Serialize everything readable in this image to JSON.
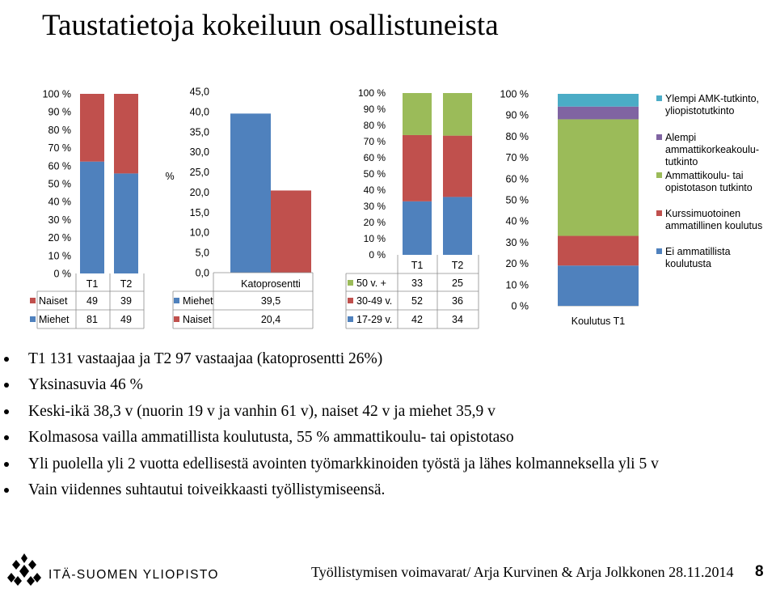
{
  "title": "Taustatietoja kokeiluun osallistuneista",
  "colors": {
    "blue": "#4F81BD",
    "red": "#C0504D",
    "green": "#9BBB59",
    "purple": "#8064A2",
    "cyan": "#4BACC6"
  },
  "chart_data": [
    {
      "type": "bar",
      "stacked": "percent",
      "categories": [
        "T1",
        "T2"
      ],
      "series": [
        {
          "name": "Miehet",
          "values": [
            81,
            49
          ],
          "color": "#4F81BD"
        },
        {
          "name": "Naiset",
          "values": [
            49,
            39
          ],
          "color": "#C0504D"
        }
      ],
      "yticks": [
        "0 %",
        "10 %",
        "20 %",
        "30 %",
        "40 %",
        "50 %",
        "60 %",
        "70 %",
        "80 %",
        "90 %",
        "100 %"
      ],
      "ylim": [
        0,
        100
      ],
      "data_table": true
    },
    {
      "type": "bar",
      "categories": [
        "Katoprosentti"
      ],
      "series": [
        {
          "name": "Miehet",
          "values": [
            "39,5"
          ],
          "value": 39.5,
          "color": "#4F81BD"
        },
        {
          "name": "Naiset",
          "values": [
            "20,4"
          ],
          "value": 20.4,
          "color": "#C0504D"
        }
      ],
      "ylabel": "%",
      "yticks": [
        "0,0",
        "5,0",
        "10,0",
        "15,0",
        "20,0",
        "25,0",
        "30,0",
        "35,0",
        "40,0",
        "45,0"
      ],
      "ylim": [
        0,
        45
      ],
      "data_table": true
    },
    {
      "type": "bar",
      "stacked": "percent",
      "categories": [
        "T1",
        "T2"
      ],
      "series": [
        {
          "name": "17-29 v.",
          "values": [
            42,
            34
          ],
          "color": "#4F81BD"
        },
        {
          "name": "30-49 v.",
          "values": [
            52,
            36
          ],
          "color": "#C0504D"
        },
        {
          "name": "50 v. +",
          "values": [
            33,
            25
          ],
          "color": "#9BBB59"
        }
      ],
      "yticks": [
        "0 %",
        "10 %",
        "20 %",
        "30 %",
        "40 %",
        "50 %",
        "60 %",
        "70 %",
        "80 %",
        "90 %",
        "100 %"
      ],
      "ylim": [
        0,
        100
      ],
      "data_table": true
    },
    {
      "type": "bar",
      "stacked": "percent",
      "categories": [
        "Koulutus T1"
      ],
      "series": [
        {
          "name": "Ei ammatillista koulutusta",
          "values": [
            19
          ],
          "color": "#4F81BD"
        },
        {
          "name": "Kurssimuotoinen ammatillinen koulutus",
          "values": [
            14
          ],
          "color": "#C0504D"
        },
        {
          "name": "Ammattikoulu- tai opistotason tutkinto",
          "values": [
            55
          ],
          "color": "#9BBB59"
        },
        {
          "name": "Alempi ammattikorkeakoulu-tutkinto",
          "values": [
            6
          ],
          "color": "#8064A2"
        },
        {
          "name": "Ylempi AMK-tutkinto, yliopistotutkinto",
          "values": [
            6
          ],
          "color": "#4BACC6"
        }
      ],
      "legend_lines": [
        [
          "Ylempi AMK-tutkinto,",
          "yliopistotutkinto"
        ],
        [
          "Alempi",
          "ammattikorkeakoulu-",
          "tutkinto"
        ],
        [
          "Ammattikoulu- tai",
          "opistotason tutkinto"
        ],
        [
          "Kurssimuotoinen",
          "ammatillinen koulutus"
        ],
        [
          "Ei ammatillista",
          "koulutusta"
        ]
      ],
      "yticks": [
        "0 %",
        "10 %",
        "20 %",
        "30 %",
        "40 %",
        "50 %",
        "60 %",
        "70 %",
        "80 %",
        "90 %",
        "100 %"
      ],
      "ylim": [
        0,
        100
      ],
      "legend": "right"
    }
  ],
  "bullets": [
    "T1 131 vastaajaa ja T2 97 vastaajaa (katoprosentti 26%)",
    "Yksinasuvia 46 %",
    "Keski-ikä 38,3 v (nuorin 19 v ja vanhin 61 v), naiset 42 v ja miehet 35,9 v",
    "Kolmasosa vailla ammatillista koulutusta, 55 % ammattikoulu- tai opistotaso",
    "Yli puolella yli 2 vuotta edellisestä avointen työmarkkinoiden työstä ja lähes kolmanneksella yli 5 v",
    "Vain viidennes suhtautui toiveikkaasti työllistymiseensä."
  ],
  "footer": {
    "logo_text": "ITÄ-SUOMEN YLIOPISTO",
    "text": "Työllistymisen voimavarat/  Arja Kurvinen & Arja Jolkkonen    28.11.2014",
    "page": "8"
  }
}
